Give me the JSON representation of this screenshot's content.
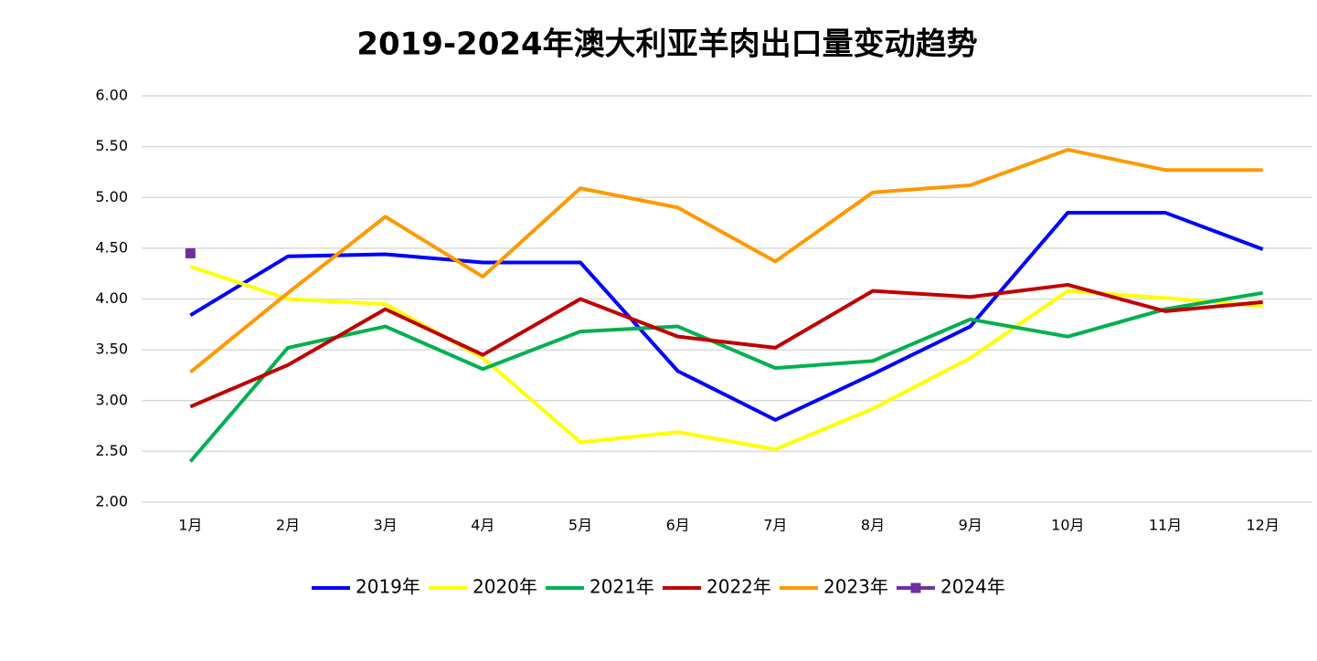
{
  "chart_data": {
    "type": "line",
    "title": "2019-2024年澳大利亚羊肉出口量变动趋势",
    "categories": [
      "1月",
      "2月",
      "3月",
      "4月",
      "5月",
      "6月",
      "7月",
      "8月",
      "9月",
      "10月",
      "11月",
      "12月"
    ],
    "series": [
      {
        "name": "2019年",
        "color": "#0000ff",
        "values": [
          3.84,
          4.42,
          4.44,
          4.36,
          4.36,
          3.29,
          2.81,
          3.26,
          3.73,
          4.85,
          4.85,
          4.49
        ]
      },
      {
        "name": "2020年",
        "color": "#ffff00",
        "values": [
          4.32,
          4.0,
          3.95,
          3.42,
          2.59,
          2.69,
          2.52,
          2.92,
          3.42,
          4.08,
          4.01,
          3.93
        ]
      },
      {
        "name": "2021年",
        "color": "#00b050",
        "values": [
          2.4,
          3.52,
          3.73,
          3.31,
          3.68,
          3.73,
          3.32,
          3.39,
          3.8,
          3.63,
          3.9,
          4.06
        ]
      },
      {
        "name": "2022年",
        "color": "#c00000",
        "values": [
          2.94,
          3.35,
          3.9,
          3.45,
          4.0,
          3.63,
          3.52,
          4.08,
          4.02,
          4.14,
          3.88,
          3.97
        ]
      },
      {
        "name": "2023年",
        "color": "#ff9900",
        "values": [
          3.28,
          4.06,
          4.81,
          4.22,
          5.09,
          4.9,
          4.37,
          5.05,
          5.12,
          5.47,
          5.27,
          5.27
        ]
      },
      {
        "name": "2024年",
        "color": "#7030a0",
        "marker": "square",
        "values": [
          4.45,
          null,
          null,
          null,
          null,
          null,
          null,
          null,
          null,
          null,
          null,
          null
        ]
      }
    ],
    "ylim": [
      2,
      6
    ],
    "yticks": [
      {
        "value": 2,
        "label": "2.00"
      },
      {
        "value": 2.5,
        "label": "2.50"
      },
      {
        "value": 3,
        "label": "3.00"
      },
      {
        "value": 3.5,
        "label": "3.50"
      },
      {
        "value": 4,
        "label": "4.00"
      },
      {
        "value": 4.5,
        "label": "4.50"
      },
      {
        "value": 5,
        "label": "5.00"
      },
      {
        "value": 5.5,
        "label": "5.50"
      },
      {
        "value": 6,
        "label": "6.00"
      }
    ],
    "grid": true,
    "legend": "bottom"
  }
}
